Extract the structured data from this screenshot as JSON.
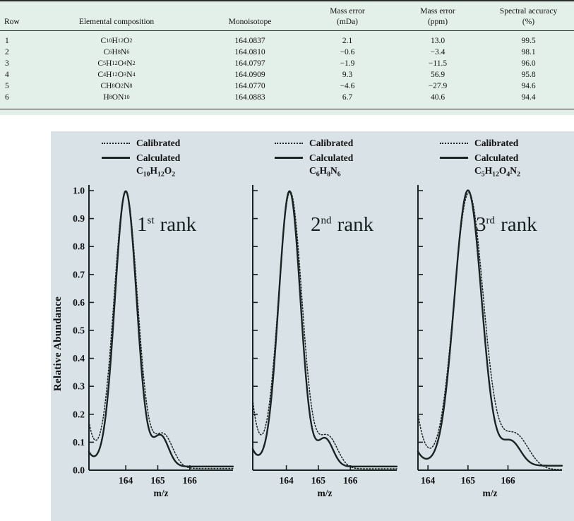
{
  "colors": {
    "table_background": "#e3efe9",
    "figure_background": "#d9e2e7",
    "curve": "#1a2322",
    "text": "#111111"
  },
  "chart_data": [
    {
      "type": "table",
      "columns": [
        [
          "Row"
        ],
        [
          "Elemental composition"
        ],
        [
          "Monoisotope"
        ],
        [
          "Mass error",
          "(mDa)"
        ],
        [
          "Mass error",
          "(ppm)"
        ],
        [
          "Spectral accuracy",
          "(%)"
        ]
      ],
      "rows": [
        [
          "1",
          "C10H12O2",
          "164.0837",
          "2.1",
          "13.0",
          "99.5"
        ],
        [
          "2",
          "C6H8N6",
          "164.0810",
          "−0.6",
          "−3.4",
          "98.1"
        ],
        [
          "3",
          "C5H12O4N2",
          "164.0797",
          "−1.9",
          "−11.5",
          "96.0"
        ],
        [
          "4",
          "C4H12O3N4",
          "164.0909",
          "9.3",
          "56.9",
          "95.8"
        ],
        [
          "5",
          "CH8O2N8",
          "164.0770",
          "−4.6",
          "−27.9",
          "94.6"
        ],
        [
          "6",
          "H8ON10",
          "164.0883",
          "6.7",
          "40.6",
          "94.4"
        ]
      ]
    },
    {
      "type": "line",
      "rank": {
        "num": "1",
        "sup": "st",
        "word": "rank"
      },
      "formula": "C10H12O2",
      "legend": [
        {
          "name": "Calibrated",
          "style": "dotted"
        },
        {
          "name": "Calculated",
          "style": "solid"
        }
      ],
      "x_label": "m/z",
      "y_label": "Relative Abundance",
      "x_range": [
        162.85,
        167.35
      ],
      "y_range": [
        0,
        1
      ],
      "x_ticks": [
        "164",
        "165",
        "166"
      ],
      "y_ticks": [
        "0.0",
        "0.1",
        "0.2",
        "0.3",
        "0.4",
        "0.5",
        "0.6",
        "0.7",
        "0.8",
        "0.9",
        "1.0"
      ],
      "y_tick_labels_visible": true,
      "series": [
        {
          "name": "Calibrated",
          "style": "dotted",
          "base": 0.006,
          "main": {
            "center": 164.0,
            "amp": 0.99,
            "sigma": 0.37
          },
          "isotope": {
            "center": 165.18,
            "amp": 0.12,
            "sigma": 0.29
          },
          "edge": {
            "amp": 0.16,
            "decay": 0.22
          }
        },
        {
          "name": "Calculated",
          "style": "solid",
          "base": 0.013,
          "main": {
            "center": 164.0,
            "amp": 0.985,
            "sigma": 0.34
          },
          "isotope": {
            "center": 165.1,
            "amp": 0.108,
            "sigma": 0.24
          },
          "edge": {
            "amp": 0.05,
            "decay": 0.2
          }
        }
      ]
    },
    {
      "type": "line",
      "rank": {
        "num": "2",
        "sup": "nd",
        "word": "rank"
      },
      "formula": "C6H8N6",
      "legend": [
        {
          "name": "Calibrated",
          "style": "dotted"
        },
        {
          "name": "Calculated",
          "style": "solid"
        }
      ],
      "x_label": "m/z",
      "y_label": "Relative Abundance",
      "x_range": [
        162.95,
        167.45
      ],
      "y_range": [
        0,
        1
      ],
      "x_ticks": [
        "164",
        "165",
        "166"
      ],
      "y_ticks": [
        "0.0",
        "0.1",
        "0.2",
        "0.3",
        "0.4",
        "0.5",
        "0.6",
        "0.7",
        "0.8",
        "0.9",
        "1.0"
      ],
      "y_tick_labels_visible": false,
      "series": [
        {
          "name": "Calibrated",
          "style": "dotted",
          "base": 0.005,
          "main": {
            "center": 164.12,
            "amp": 0.99,
            "sigma": 0.37
          },
          "isotope": {
            "center": 165.3,
            "amp": 0.115,
            "sigma": 0.3
          },
          "edge": {
            "amp": 0.24,
            "decay": 0.22
          }
        },
        {
          "name": "Calculated",
          "style": "solid",
          "base": 0.013,
          "main": {
            "center": 164.1,
            "amp": 0.985,
            "sigma": 0.34
          },
          "isotope": {
            "center": 165.22,
            "amp": 0.098,
            "sigma": 0.24
          },
          "edge": {
            "amp": 0.06,
            "decay": 0.2
          }
        }
      ]
    },
    {
      "type": "line",
      "rank": {
        "num": "3",
        "sup": "rd",
        "word": "rank"
      },
      "formula": "C5H12O4N2",
      "legend": [
        {
          "name": "Calibrated",
          "style": "dotted"
        },
        {
          "name": "Calculated",
          "style": "solid"
        }
      ],
      "x_label": "m/z",
      "y_label": "Relative Abundance",
      "x_range": [
        163.75,
        167.35
      ],
      "y_range": [
        0,
        1
      ],
      "x_ticks": [
        "164",
        "165",
        "166"
      ],
      "y_ticks": [
        "0.0",
        "0.1",
        "0.2",
        "0.3",
        "0.4",
        "0.5",
        "0.6",
        "0.7",
        "0.8",
        "0.9",
        "1.0"
      ],
      "y_tick_labels_visible": false,
      "series": [
        {
          "name": "Calibrated",
          "style": "dotted",
          "base": 0.002,
          "main": {
            "center": 165.02,
            "amp": 0.99,
            "sigma": 0.37
          },
          "isotope": {
            "center": 166.18,
            "amp": 0.125,
            "sigma": 0.33
          },
          "edge": {
            "amp": 0.2,
            "decay": 0.2
          }
        },
        {
          "name": "Calculated",
          "style": "solid",
          "base": 0.016,
          "main": {
            "center": 165.0,
            "amp": 0.985,
            "sigma": 0.34
          },
          "isotope": {
            "center": 166.08,
            "amp": 0.085,
            "sigma": 0.24
          },
          "edge": {
            "amp": 0.05,
            "decay": 0.18
          }
        }
      ]
    }
  ]
}
